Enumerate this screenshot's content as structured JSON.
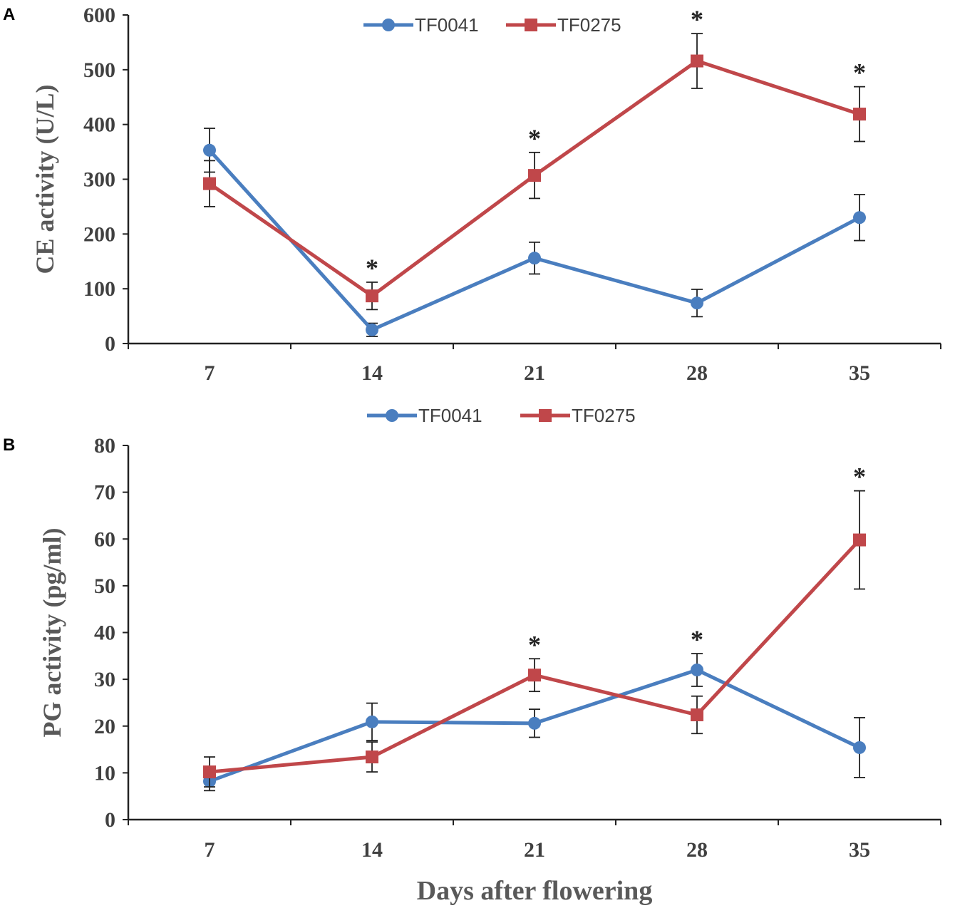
{
  "chart_data": [
    {
      "type": "line",
      "panel_label": "A",
      "ylabel": "CE activity (U/L)",
      "xlabel": "",
      "categories": [
        "7",
        "14",
        "21",
        "28",
        "35"
      ],
      "ylim": [
        0,
        600
      ],
      "yticks": [
        0,
        100,
        200,
        300,
        400,
        500,
        600
      ],
      "grid": false,
      "legend": "top-center",
      "series": [
        {
          "name": "TF0041",
          "color": "#4a7ebf",
          "marker": "circle",
          "values": [
            353,
            25,
            156,
            74,
            230
          ],
          "errors": [
            40,
            12,
            29,
            25,
            42
          ]
        },
        {
          "name": "TF0275",
          "color": "#c0474a",
          "marker": "square",
          "values": [
            292,
            87,
            307,
            516,
            419
          ],
          "errors": [
            42,
            25,
            42,
            50,
            50
          ]
        }
      ],
      "significance": [
        "",
        "*",
        "*",
        "*",
        "*"
      ]
    },
    {
      "type": "line",
      "panel_label": "B",
      "ylabel": "PG activity (pg/ml)",
      "xlabel": "Days after flowering",
      "categories": [
        "7",
        "14",
        "21",
        "28",
        "35"
      ],
      "ylim": [
        0,
        80
      ],
      "yticks": [
        0,
        10,
        20,
        30,
        40,
        50,
        60,
        70,
        80
      ],
      "grid": false,
      "legend": "top-center",
      "series": [
        {
          "name": "TF0041",
          "color": "#4a7ebf",
          "marker": "circle",
          "values": [
            8.2,
            20.9,
            20.6,
            32.0,
            15.4
          ],
          "errors": [
            2,
            4,
            3,
            3.5,
            6.4
          ]
        },
        {
          "name": "TF0275",
          "color": "#c0474a",
          "marker": "square",
          "values": [
            10.2,
            13.4,
            30.9,
            22.4,
            59.8
          ],
          "errors": [
            3.2,
            3.2,
            3.5,
            4,
            10.5
          ]
        }
      ],
      "significance": [
        "",
        "",
        "*",
        "*",
        "*"
      ]
    }
  ]
}
